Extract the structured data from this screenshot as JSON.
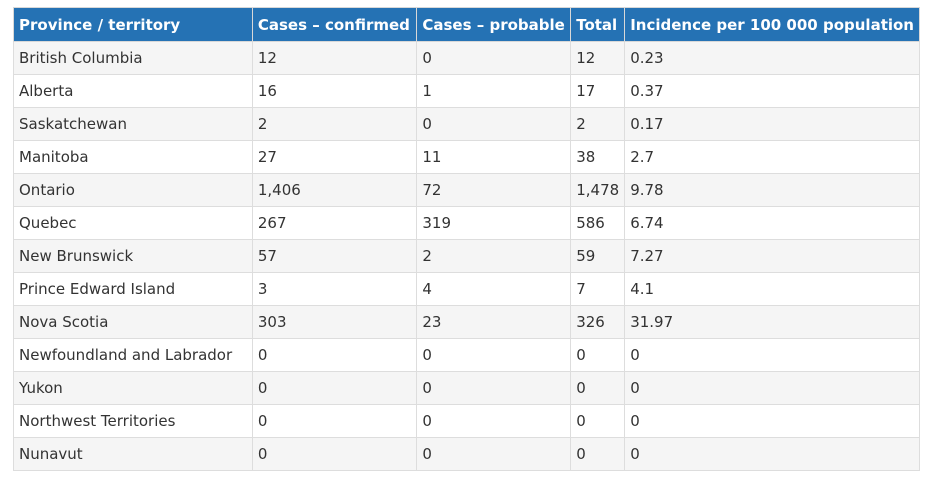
{
  "table": {
    "headers": [
      "Province / territory",
      "Cases – confirmed",
      "Cases – probable",
      "Total",
      "Incidence per 100 000 population"
    ],
    "rows": [
      [
        "British Columbia",
        "12",
        "0",
        "12",
        "0.23"
      ],
      [
        "Alberta",
        "16",
        "1",
        "17",
        "0.37"
      ],
      [
        "Saskatchewan",
        "2",
        "0",
        "2",
        "0.17"
      ],
      [
        "Manitoba",
        "27",
        "11",
        "38",
        "2.7"
      ],
      [
        "Ontario",
        "1,406",
        "72",
        "1,478",
        "9.78"
      ],
      [
        "Quebec",
        "267",
        "319",
        "586",
        "6.74"
      ],
      [
        "New Brunswick",
        "57",
        "2",
        "59",
        "7.27"
      ],
      [
        "Prince Edward Island",
        "3",
        "4",
        "7",
        "4.1"
      ],
      [
        "Nova Scotia",
        "303",
        "23",
        "326",
        "31.97"
      ],
      [
        "Newfoundland and Labrador",
        "0",
        "0",
        "0",
        "0"
      ],
      [
        "Yukon",
        "0",
        "0",
        "0",
        "0"
      ],
      [
        "Northwest Territories",
        "0",
        "0",
        "0",
        "0"
      ],
      [
        "Nunavut",
        "0",
        "0",
        "0",
        "0"
      ]
    ]
  },
  "colors": {
    "header": "#2572b4",
    "stripe": "#f5f5f5"
  }
}
